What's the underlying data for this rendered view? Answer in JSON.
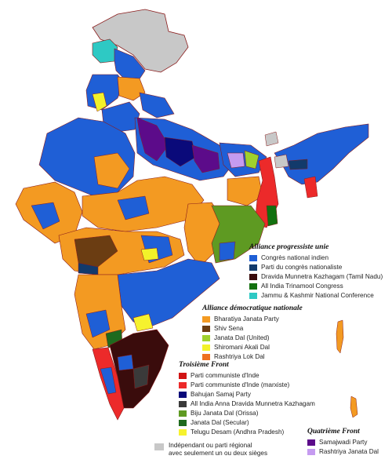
{
  "colors": {
    "congress": "#1f5fd6",
    "ncp": "#123a6b",
    "dmk": "#3a0c0c",
    "tmc": "#12700f",
    "jknc": "#2ec9c4",
    "bjp": "#f39a22",
    "shivsena": "#6b3d12",
    "jdu": "#9fd12e",
    "sad": "#f2f22a",
    "rld": "#ee7020",
    "cpi": "#d11414",
    "cpim": "#ec2a2a",
    "bsp": "#0a0a7a",
    "aiadmk": "#3a3a3a",
    "bjd": "#5e9a22",
    "jds": "#1e6a1e",
    "tdp": "#f6f22e",
    "sp": "#5c0b8a",
    "rjd": "#c59bf0",
    "independent": "#c8c8c8",
    "border": "#8a1c1c",
    "ocean": "#ffffff"
  },
  "legend": {
    "upa": {
      "title": "Alliance progressiste unie",
      "items": [
        {
          "label": "Congrès national indien",
          "color": "#1f5fd6",
          "icon": "congress-swatch"
        },
        {
          "label": "Parti du congrès nationaliste",
          "color": "#123a6b",
          "icon": "ncp-swatch"
        },
        {
          "label": "Dravida Munnetra Kazhagam (Tamil Nadu)",
          "color": "#3a0c0c",
          "icon": "dmk-swatch"
        },
        {
          "label": "All India Trinamool Congress",
          "color": "#12700f",
          "icon": "tmc-swatch"
        },
        {
          "label": "Jammu & Kashmir National Conference",
          "color": "#2ec9c4",
          "icon": "jknc-swatch"
        }
      ]
    },
    "nda": {
      "title": "Alliance démocratique nationale",
      "items": [
        {
          "label": "Bharatiya Janata Party",
          "color": "#f39a22",
          "icon": "bjp-swatch"
        },
        {
          "label": "Shiv Sena",
          "color": "#6b3d12",
          "icon": "shivsena-swatch"
        },
        {
          "label": "Janata Dal (United)",
          "color": "#9fd12e",
          "icon": "jdu-swatch"
        },
        {
          "label": "Shiromani Akali Dal",
          "color": "#f2f22a",
          "icon": "sad-swatch"
        },
        {
          "label": "Rashtriya Lok Dal",
          "color": "#ee7020",
          "icon": "rld-swatch"
        }
      ]
    },
    "third": {
      "title": "Troisième Front",
      "items": [
        {
          "label": "Parti communiste d'Inde",
          "color": "#d11414",
          "icon": "cpi-swatch"
        },
        {
          "label": "Parti communiste d'Inde (marxiste)",
          "color": "#ec2a2a",
          "icon": "cpim-swatch"
        },
        {
          "label": "Bahujan Samaj Party",
          "color": "#0a0a7a",
          "icon": "bsp-swatch"
        },
        {
          "label": "All India Anna Dravida Munnetra Kazhagam",
          "color": "#3a3a3a",
          "icon": "aiadmk-swatch"
        },
        {
          "label": "Biju Janata Dal (Orissa)",
          "color": "#5e9a22",
          "icon": "bjd-swatch"
        },
        {
          "label": "Janata Dal (Secular)",
          "color": "#1e6a1e",
          "icon": "jds-swatch"
        },
        {
          "label": "Telugu Desam (Andhra Pradesh)",
          "color": "#f6f22e",
          "icon": "tdp-swatch"
        }
      ]
    },
    "fourth": {
      "title": "Quatrième Front",
      "items": [
        {
          "label": "Samajwadi Party",
          "color": "#5c0b8a",
          "icon": "sp-swatch"
        },
        {
          "label": "Rashtriya Janata Dal",
          "color": "#c59bf0",
          "icon": "rjd-swatch"
        }
      ]
    },
    "independent": {
      "line1": "Indépendant ou parti régional",
      "line2": "avec seulement un ou deux sièges",
      "color": "#c8c8c8"
    }
  }
}
